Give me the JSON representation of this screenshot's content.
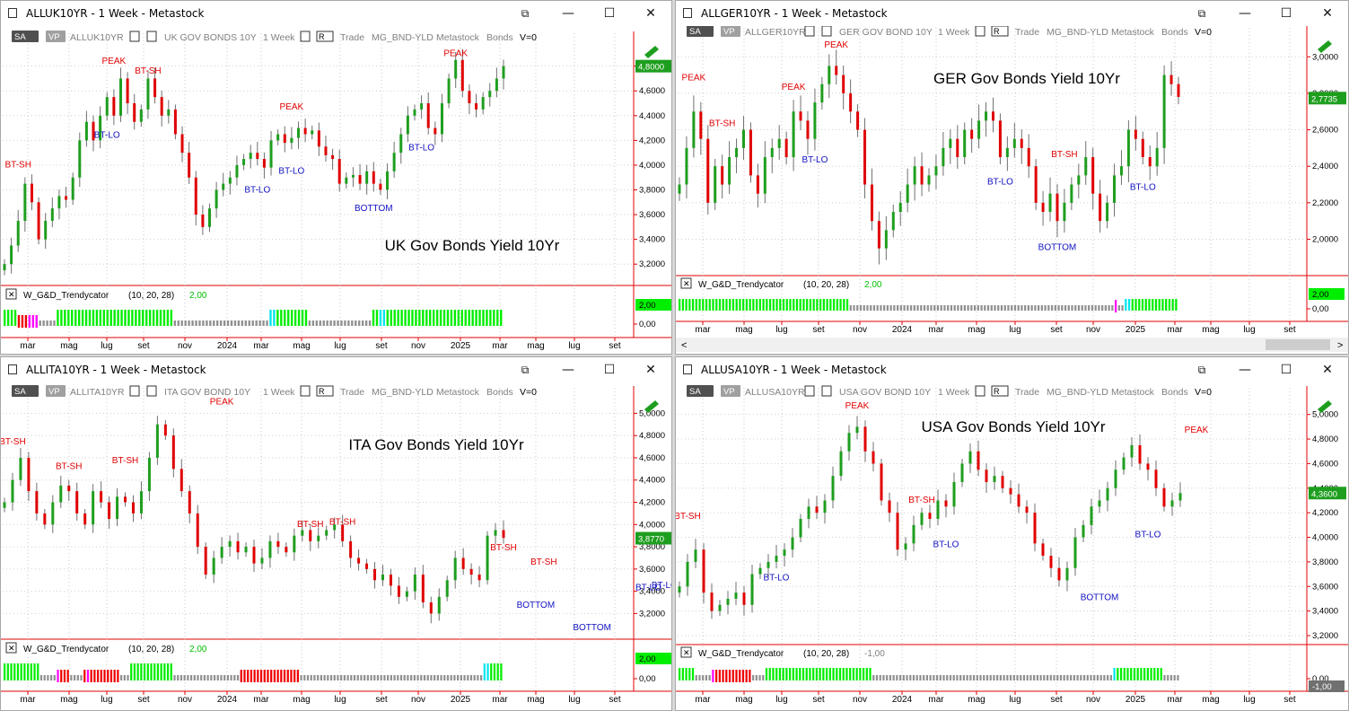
{
  "colors": {
    "up": "#1e9e1e",
    "down": "#e00000",
    "green": "#00ee00",
    "grey": "#909090",
    "redbar": "#ee0000",
    "magenta": "#ff00ff",
    "cyan": "#00e5ee",
    "axis": "#e00000",
    "labelred": "#e00000",
    "labelblue": "#1010c0",
    "toolgrey": "#808080"
  },
  "common": {
    "sa": "SA",
    "vp": "VP",
    "r": "R",
    "interval": "1 Week",
    "trade": "Trade",
    "type": "MG_BND-YLD",
    "source": "Metastock",
    "group": "Bonds",
    "v0": "V=0",
    "ind_name": "W_G&D_Trendycator",
    "ind_params": "(10,  20,  28)",
    "xticks": [
      "mar",
      "mag",
      "lug",
      "set",
      "nov",
      "2024",
      "mar",
      "mag",
      "lug",
      "set",
      "nov",
      "2025",
      "mar",
      "mag",
      "lug",
      "set"
    ],
    "icons": {
      "app": "chart-window-icon",
      "restore": "restore-icon",
      "min": "minimize-icon",
      "max": "maximize-icon",
      "close": "close-icon",
      "pencil": "draw-tool-icon"
    }
  },
  "windows": [
    {
      "title": "ALLUK10YR - 1 Week - Metastock",
      "symbol": "ALLUK10YR",
      "desc": "UK GOV BONDS 10Y",
      "ind_value": "2,00",
      "ind_badge": "2,00",
      "ind_zero": "0,00",
      "chart_data": {
        "type": "candlestick",
        "title": "UK Gov Bonds Yield 10Yr",
        "ylim": [
          3.1,
          4.95
        ],
        "yticks": [
          "3,2000",
          "3,4000",
          "3,6000",
          "3,8000",
          "4,0000",
          "4,2000",
          "4,4000",
          "4,6000",
          "4,8000"
        ],
        "last": "4,8000",
        "last_value": 4.8,
        "closes": [
          3.2,
          3.35,
          3.55,
          3.85,
          3.7,
          3.4,
          3.55,
          3.65,
          3.75,
          3.72,
          3.9,
          4.2,
          4.35,
          4.2,
          4.4,
          4.55,
          4.4,
          4.7,
          4.5,
          4.35,
          4.45,
          4.7,
          4.55,
          4.4,
          4.45,
          4.25,
          4.1,
          3.9,
          3.6,
          3.5,
          3.65,
          3.8,
          3.85,
          3.9,
          4.0,
          4.05,
          4.1,
          4.05,
          3.98,
          4.2,
          4.25,
          4.18,
          4.22,
          4.3,
          4.25,
          4.28,
          4.15,
          4.08,
          4.05,
          3.85,
          3.9,
          3.92,
          3.85,
          3.95,
          3.85,
          3.8,
          3.95,
          4.1,
          4.25,
          4.4,
          4.45,
          4.5,
          4.3,
          4.25,
          4.5,
          4.7,
          4.85,
          4.6,
          4.5,
          4.45,
          4.55,
          4.6,
          4.7,
          4.8
        ],
        "zones": "ggggrrrmmmkkkkkgggggggggggggggggggggggggggggggggkkkkkkkkkkkkkkkkkkkkkkkkkkkccgggggggggkkkkkkkkkkkkkkkkkkggccggggggggggggggggggggggggggggggggg",
        "annotations": [
          {
            "text": "BT-SH",
            "color": "red",
            "i": 2,
            "v": 3.98
          },
          {
            "text": "PEAK",
            "color": "red",
            "i": 16,
            "v": 4.82
          },
          {
            "text": "BT-SH",
            "color": "red",
            "i": 21,
            "v": 4.74
          },
          {
            "text": "BT-LO",
            "color": "blue",
            "i": 15,
            "v": 4.22
          },
          {
            "text": "PEAK",
            "color": "red",
            "i": 42,
            "v": 4.45
          },
          {
            "text": "BT-LO",
            "color": "blue",
            "i": 37,
            "v": 3.78
          },
          {
            "text": "BT-LO",
            "color": "blue",
            "i": 42,
            "v": 3.93
          },
          {
            "text": "BOTTOM",
            "color": "blue",
            "i": 54,
            "v": 3.63
          },
          {
            "text": "PEAK",
            "color": "red",
            "i": 66,
            "v": 4.88
          },
          {
            "text": "BT-LO",
            "color": "blue",
            "i": 61,
            "v": 4.12
          }
        ],
        "title_pos": "bottom"
      }
    },
    {
      "title": "ALLGER10YR - 1 Week - Metastock",
      "symbol": "ALLGER10YR",
      "desc": "GER GOV BOND 10Y",
      "ind_value": "2,00",
      "ind_badge": "2,00",
      "ind_zero": "0,00",
      "chart_data": {
        "type": "candlestick",
        "title": "GER Gov Bonds Yield 10Yr",
        "ylim": [
          1.85,
          3.08
        ],
        "yticks": [
          "2,0000",
          "2,2000",
          "2,4000",
          "2,6000",
          "2,8000",
          "3,0000"
        ],
        "last": "2,7735",
        "last_value": 2.7735,
        "closes": [
          2.3,
          2.5,
          2.7,
          2.55,
          2.2,
          2.4,
          2.3,
          2.45,
          2.5,
          2.6,
          2.35,
          2.25,
          2.45,
          2.5,
          2.55,
          2.45,
          2.7,
          2.65,
          2.55,
          2.75,
          2.85,
          2.95,
          2.9,
          2.8,
          2.7,
          2.6,
          2.3,
          2.1,
          1.95,
          2.05,
          2.15,
          2.2,
          2.3,
          2.4,
          2.3,
          2.35,
          2.4,
          2.5,
          2.55,
          2.45,
          2.6,
          2.55,
          2.65,
          2.7,
          2.65,
          2.45,
          2.5,
          2.55,
          2.5,
          2.4,
          2.2,
          2.15,
          2.25,
          2.1,
          2.2,
          2.3,
          2.35,
          2.45,
          2.25,
          2.1,
          2.2,
          2.35,
          2.4,
          2.6,
          2.55,
          2.45,
          2.4,
          2.5,
          2.9,
          2.85,
          2.78
        ],
        "zones": "gggggggggggggggggggggggggggggggggggggggggggggggggggkkkkkkkkkkkkkkkkkkkkkkkkkkkkkkkkkkkkkkkkkkkkkkkkkkkkkkkkkkkkkkkkkkkkkkkkkkkkkkkmkkccgggggggggggggg",
        "annotations": [
          {
            "text": "PEAK",
            "color": "red",
            "i": 2,
            "v": 2.87
          },
          {
            "text": "BT-SH",
            "color": "red",
            "i": 6,
            "v": 2.62
          },
          {
            "text": "PEAK",
            "color": "red",
            "i": 16,
            "v": 2.82
          },
          {
            "text": "PEAK",
            "color": "red",
            "i": 22,
            "v": 3.05
          },
          {
            "text": "BT-LO",
            "color": "blue",
            "i": 19,
            "v": 2.42
          },
          {
            "text": "BT-LO",
            "color": "blue",
            "i": 45,
            "v": 2.3
          },
          {
            "text": "BT-SH",
            "color": "red",
            "i": 54,
            "v": 2.45
          },
          {
            "text": "BOTTOM",
            "color": "blue",
            "i": 53,
            "v": 1.94
          },
          {
            "text": "BT-LO",
            "color": "blue",
            "i": 65,
            "v": 2.27
          }
        ],
        "title_pos": "top"
      }
    },
    {
      "title": "ALLITA10YR - 1 Week - Metastock",
      "symbol": "ALLITA10YR",
      "desc": "ITA GOV BOND 10Y",
      "ind_value": "2,00",
      "ind_badge": "2,00",
      "ind_zero": "0,00",
      "chart_data": {
        "type": "candlestick",
        "title": "ITA Gov Bonds Yield 10Yr",
        "ylim": [
          3.05,
          5.1
        ],
        "yticks": [
          "3,2000",
          "3,4000",
          "3,6000",
          "3,8000",
          "4,0000",
          "4,2000",
          "4,4000",
          "4,6000",
          "4,8000",
          "5,0000"
        ],
        "last": "3,8770",
        "last_value": 3.877,
        "closes": [
          4.2,
          4.4,
          4.6,
          4.3,
          4.1,
          4.0,
          4.2,
          4.35,
          4.3,
          4.1,
          4.0,
          4.3,
          4.2,
          4.05,
          4.25,
          4.2,
          4.1,
          4.3,
          4.6,
          4.9,
          4.8,
          4.5,
          4.3,
          4.1,
          3.8,
          3.55,
          3.7,
          3.8,
          3.85,
          3.75,
          3.8,
          3.65,
          3.7,
          3.85,
          3.8,
          3.75,
          3.9,
          3.95,
          3.85,
          3.9,
          3.95,
          4.0,
          3.85,
          3.7,
          3.65,
          3.6,
          3.5,
          3.55,
          3.45,
          3.35,
          3.4,
          3.55,
          3.3,
          3.2,
          3.35,
          3.5,
          3.7,
          3.6,
          3.55,
          3.5,
          3.9,
          3.95,
          3.88
        ],
        "zones": "gggggggggggkkkkkmrrrkkkkrmrrrrrrrrrkkkgggggggggggggkkkkkkkkkkkkkkkkkkkkrrrrrrrrrrrrrrrrrrkkkkkkkkkkkkkkkkkkkkkkkkkkkkkkkkkkkkkkkkkkkkkkkkkkkkkkkccgggg",
        "annotations": [
          {
            "text": "BT-SH",
            "color": "red",
            "i": 1,
            "v": 4.72
          },
          {
            "text": "BT-SH",
            "color": "red",
            "i": 8,
            "v": 4.5
          },
          {
            "text": "BT-SH",
            "color": "red",
            "i": 15,
            "v": 4.55
          },
          {
            "text": "PEAK",
            "color": "red",
            "i": 27,
            "v": 5.08
          },
          {
            "text": "BT-SH",
            "color": "red",
            "i": 38,
            "v": 3.98
          },
          {
            "text": "BT-SH",
            "color": "red",
            "i": 42,
            "v": 4.0
          },
          {
            "text": "BT-SH",
            "color": "red",
            "i": 62,
            "v": 3.77
          },
          {
            "text": "BT-SH",
            "color": "red",
            "i": 67,
            "v": 3.64
          },
          {
            "text": "BOTTOM",
            "color": "blue",
            "i": 66,
            "v": 3.25
          },
          {
            "text": "BOTTOM",
            "color": "blue",
            "i": 73,
            "v": 3.05
          },
          {
            "text": "BT-LO",
            "color": "blue",
            "i": 80,
            "v": 3.41
          },
          {
            "text": "BT-LO",
            "color": "blue",
            "i": 82,
            "v": 3.43
          }
        ],
        "title_pos": "top"
      }
    },
    {
      "title": "ALLUSA10YR - 1 Week - Metastock",
      "symbol": "ALLUSA10YR",
      "desc": "USA GOV BOND 10Y",
      "ind_value": "-1,00",
      "ind_badge": "-1,00",
      "ind_zero": "0,00",
      "chart_data": {
        "type": "candlestick",
        "title": "USA Gov Bonds Yield 10Yr",
        "ylim": [
          3.2,
          5.1
        ],
        "yticks": [
          "3,2000",
          "3,4000",
          "3,6000",
          "3,8000",
          "4,0000",
          "4,2000",
          "4,4000",
          "4,6000",
          "4,8000",
          "5,0000"
        ],
        "last": "4,3600",
        "last_value": 4.36,
        "closes": [
          3.6,
          3.8,
          3.9,
          3.55,
          3.4,
          3.45,
          3.5,
          3.55,
          3.45,
          3.7,
          3.75,
          3.8,
          3.85,
          3.9,
          4.0,
          4.15,
          4.25,
          4.2,
          4.3,
          4.5,
          4.7,
          4.85,
          4.9,
          4.7,
          4.6,
          4.3,
          4.2,
          3.9,
          3.95,
          4.1,
          4.2,
          4.15,
          4.3,
          4.25,
          4.45,
          4.6,
          4.7,
          4.55,
          4.45,
          4.5,
          4.4,
          4.35,
          4.25,
          4.2,
          3.95,
          3.85,
          3.75,
          3.65,
          3.75,
          4.0,
          4.1,
          4.25,
          4.3,
          4.4,
          4.55,
          4.65,
          4.75,
          4.6,
          4.55,
          4.4,
          4.25,
          4.3,
          4.36
        ],
        "zones": "gggggkkkkkmrrrrrrrrrrrkkkkggggggggggggggggggggggggggggggggkkkkkkkkkkkkkkkkkkkkkkkkkkkkkkkkkkkkkkkkkkkkkkkkkkkkkkkkkkkkkkkkkkkkkkkkcggggggggggggggkkkkk",
        "annotations": [
          {
            "text": "BT-SH",
            "color": "red",
            "i": 1,
            "v": 4.15
          },
          {
            "text": "PEAK",
            "color": "red",
            "i": 22,
            "v": 5.05
          },
          {
            "text": "BT-LO",
            "color": "blue",
            "i": 12,
            "v": 3.65
          },
          {
            "text": "BT-SH",
            "color": "red",
            "i": 30,
            "v": 4.28
          },
          {
            "text": "BT-LO",
            "color": "blue",
            "i": 33,
            "v": 3.92
          },
          {
            "text": "BOTTOM",
            "color": "blue",
            "i": 52,
            "v": 3.49
          },
          {
            "text": "BT-LO",
            "color": "blue",
            "i": 58,
            "v": 4.0
          },
          {
            "text": "PEAK",
            "color": "red",
            "i": 64,
            "v": 4.85
          }
        ],
        "title_pos": "top"
      }
    }
  ]
}
